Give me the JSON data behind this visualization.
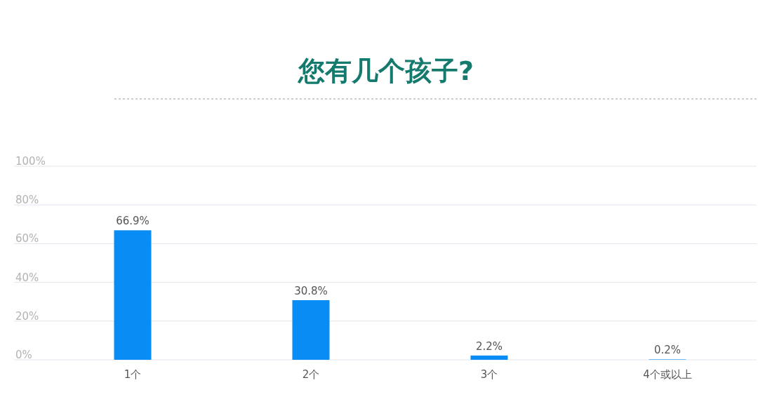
{
  "chart_data": {
    "type": "bar",
    "title": "您有几个孩子?",
    "categories": [
      "1个",
      "2个",
      "3个",
      "4个或以上"
    ],
    "values": [
      66.9,
      30.8,
      2.2,
      0.2
    ],
    "value_labels": [
      "66.9%",
      "30.8%",
      "2.2%",
      "0.2%"
    ],
    "color": "#0a8cf5",
    "ylim": [
      0,
      100
    ],
    "yticks": [
      {
        "value": 0,
        "label": "0%"
      },
      {
        "value": 20,
        "label": "20%"
      },
      {
        "value": 40,
        "label": "40%"
      },
      {
        "value": 60,
        "label": "60%"
      },
      {
        "value": 80,
        "label": "80%"
      },
      {
        "value": 100,
        "label": "100%"
      }
    ],
    "grid": "y"
  }
}
